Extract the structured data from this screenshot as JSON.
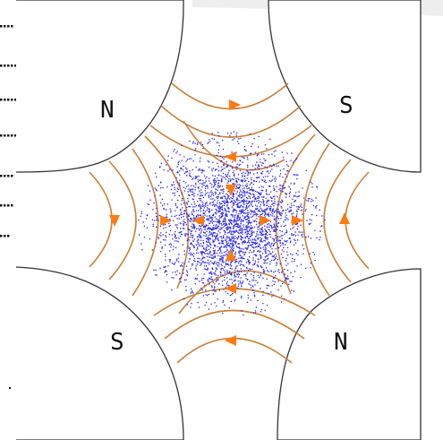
{
  "diagram": {
    "poles": [
      {
        "id": "top-left",
        "label": "N"
      },
      {
        "id": "top-right",
        "label": "S"
      },
      {
        "id": "bottom-left",
        "label": "S"
      },
      {
        "id": "bottom-right",
        "label": "N"
      }
    ],
    "colors": {
      "pole_outline": "#333333",
      "field_line": "#c8803a",
      "arrow": "#ff7a10",
      "particle": "#2222ee",
      "dots": "#111111"
    },
    "particle_count": 3000
  }
}
